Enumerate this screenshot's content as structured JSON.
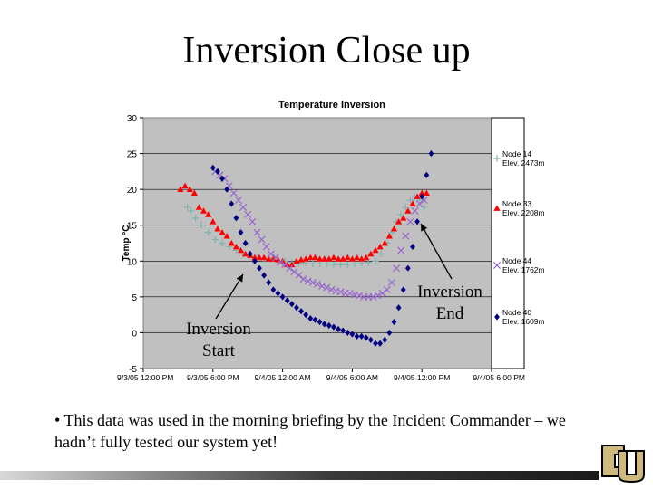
{
  "slide": {
    "title": "Inversion Close up",
    "annotation_start": "Inversion\nStart",
    "annotation_end": "Inversion\nEnd",
    "bullet": "• This data was used in the morning briefing by the Incident Commander – we hadn’t fully tested our system yet!",
    "logo_text": "CU"
  },
  "chart_data": {
    "type": "scatter",
    "title": "Temperature Inversion",
    "ylabel": "Temp °C",
    "xlabel": "",
    "ylim": [
      -5,
      30
    ],
    "yticks": [
      -5,
      0,
      5,
      10,
      15,
      20,
      25,
      30
    ],
    "xlim": [
      0,
      30
    ],
    "x_tick_labels": [
      "9/3/05 12:00 PM",
      "9/3/05 6:00 PM",
      "9/4/05 12:00 AM",
      "9/4/05 6:00 AM",
      "9/4/05 12:00 PM",
      "9/4/05 6:00 PM"
    ],
    "x_tick_positions": [
      0,
      6,
      12,
      18,
      24,
      30
    ],
    "grid": "horizontal",
    "legend": "right",
    "plot_background": "#c0c0c0",
    "series": [
      {
        "name": "Node 14\nElev. 2473m",
        "marker": "plus",
        "color": "#7fb2b2",
        "x": [
          3.8,
          4.1,
          4.5,
          5.0,
          5.6,
          6.2,
          6.8,
          7.4,
          8.0,
          8.6,
          9.2,
          9.8,
          10.4,
          11.0,
          11.6,
          12.2,
          12.8,
          13.4,
          14.0,
          14.6,
          15.2,
          15.8,
          16.4,
          17.0,
          17.6,
          18.2,
          18.8,
          19.4,
          20.0,
          20.5,
          21.0,
          21.4,
          21.8,
          22.2,
          22.6,
          23.0,
          23.4,
          23.8,
          24.2
        ],
        "y": [
          17.5,
          17.0,
          16.0,
          15.0,
          14.0,
          13.0,
          12.5,
          12.0,
          11.5,
          11.0,
          10.8,
          10.5,
          10.3,
          10.2,
          10.0,
          10.0,
          9.8,
          9.7,
          9.7,
          9.6,
          9.6,
          9.6,
          9.5,
          9.5,
          9.5,
          9.6,
          9.7,
          9.8,
          10.0,
          11.0,
          12.5,
          14.0,
          15.5,
          16.5,
          17.5,
          18.5,
          19.0,
          18.5,
          17.5
        ]
      },
      {
        "name": "Node 33\nElev. 2208m",
        "marker": "triangle",
        "color": "#ff0000",
        "x": [
          3.2,
          3.6,
          4.0,
          4.4,
          4.8,
          5.2,
          5.6,
          6.0,
          6.4,
          6.8,
          7.2,
          7.6,
          8.0,
          8.4,
          8.8,
          9.2,
          9.6,
          10.0,
          10.4,
          10.8,
          11.2,
          11.6,
          12.0,
          12.4,
          12.8,
          13.2,
          13.6,
          14.0,
          14.4,
          14.8,
          15.2,
          15.6,
          16.0,
          16.4,
          16.8,
          17.2,
          17.6,
          18.0,
          18.4,
          18.8,
          19.2,
          19.6,
          20.0,
          20.4,
          20.8,
          21.2,
          21.6,
          22.0,
          22.4,
          22.8,
          23.2,
          23.6,
          24.0,
          24.4
        ],
        "y": [
          20.0,
          20.5,
          20.0,
          19.5,
          17.5,
          17.0,
          16.5,
          15.5,
          14.5,
          14.0,
          13.5,
          12.5,
          12.0,
          11.5,
          11.0,
          10.8,
          10.5,
          10.5,
          10.5,
          10.3,
          10.3,
          10.2,
          10.0,
          9.5,
          9.5,
          10.0,
          10.2,
          10.3,
          10.5,
          10.5,
          10.3,
          10.3,
          10.3,
          10.5,
          10.3,
          10.3,
          10.5,
          10.3,
          10.5,
          10.3,
          10.5,
          11.0,
          11.5,
          12.0,
          12.5,
          13.5,
          14.5,
          15.5,
          16.0,
          17.0,
          18.0,
          19.0,
          19.5,
          19.5
        ]
      },
      {
        "name": "Node 44\nElev. 1762m",
        "marker": "x",
        "color": "#9966cc",
        "x": [
          6.2,
          6.6,
          7.0,
          7.4,
          7.8,
          8.2,
          8.6,
          9.0,
          9.4,
          9.8,
          10.2,
          10.6,
          11.0,
          11.4,
          11.8,
          12.2,
          12.6,
          13.0,
          13.4,
          13.8,
          14.2,
          14.6,
          15.0,
          15.4,
          15.8,
          16.2,
          16.6,
          17.0,
          17.4,
          17.8,
          18.2,
          18.6,
          19.0,
          19.4,
          19.8,
          20.2,
          20.6,
          21.0,
          21.4,
          21.8,
          22.2,
          22.6,
          23.0,
          23.4,
          23.8,
          24.2
        ],
        "y": [
          22.5,
          22.0,
          21.5,
          20.5,
          19.5,
          18.5,
          17.5,
          16.5,
          15.5,
          14.0,
          13.0,
          12.0,
          11.0,
          10.5,
          9.8,
          9.5,
          9.0,
          8.5,
          8.0,
          7.5,
          7.2,
          7.0,
          6.8,
          6.5,
          6.3,
          6.0,
          5.8,
          5.7,
          5.5,
          5.5,
          5.3,
          5.2,
          5.0,
          5.0,
          5.0,
          5.2,
          5.5,
          6.0,
          7.0,
          9.0,
          11.5,
          13.5,
          15.5,
          17.0,
          18.0,
          18.5
        ]
      },
      {
        "name": "Node 40\nElev. 1609m",
        "marker": "diamond",
        "color": "#000080",
        "x": [
          6.0,
          6.4,
          6.8,
          7.2,
          7.6,
          8.0,
          8.4,
          8.8,
          9.2,
          9.6,
          10.0,
          10.4,
          10.8,
          11.2,
          11.6,
          12.0,
          12.4,
          12.8,
          13.2,
          13.6,
          14.0,
          14.4,
          14.8,
          15.2,
          15.6,
          16.0,
          16.4,
          16.8,
          17.2,
          17.6,
          18.0,
          18.4,
          18.8,
          19.2,
          19.6,
          20.0,
          20.4,
          20.8,
          21.2,
          21.6,
          22.0,
          22.4,
          22.8,
          23.2,
          23.6,
          24.0,
          24.4,
          24.8
        ],
        "y": [
          23.0,
          22.5,
          21.5,
          20.0,
          18.0,
          16.0,
          14.0,
          12.5,
          11.0,
          10.0,
          9.0,
          8.0,
          7.0,
          6.0,
          5.5,
          5.0,
          4.5,
          4.0,
          3.5,
          3.0,
          2.5,
          2.0,
          1.8,
          1.5,
          1.2,
          1.0,
          0.8,
          0.5,
          0.3,
          0.0,
          -0.2,
          -0.5,
          -0.5,
          -0.7,
          -1.0,
          -1.5,
          -1.5,
          -1.0,
          0.0,
          1.5,
          3.5,
          6.0,
          9.0,
          12.0,
          15.5,
          19.0,
          22.0,
          25.0
        ]
      }
    ]
  }
}
